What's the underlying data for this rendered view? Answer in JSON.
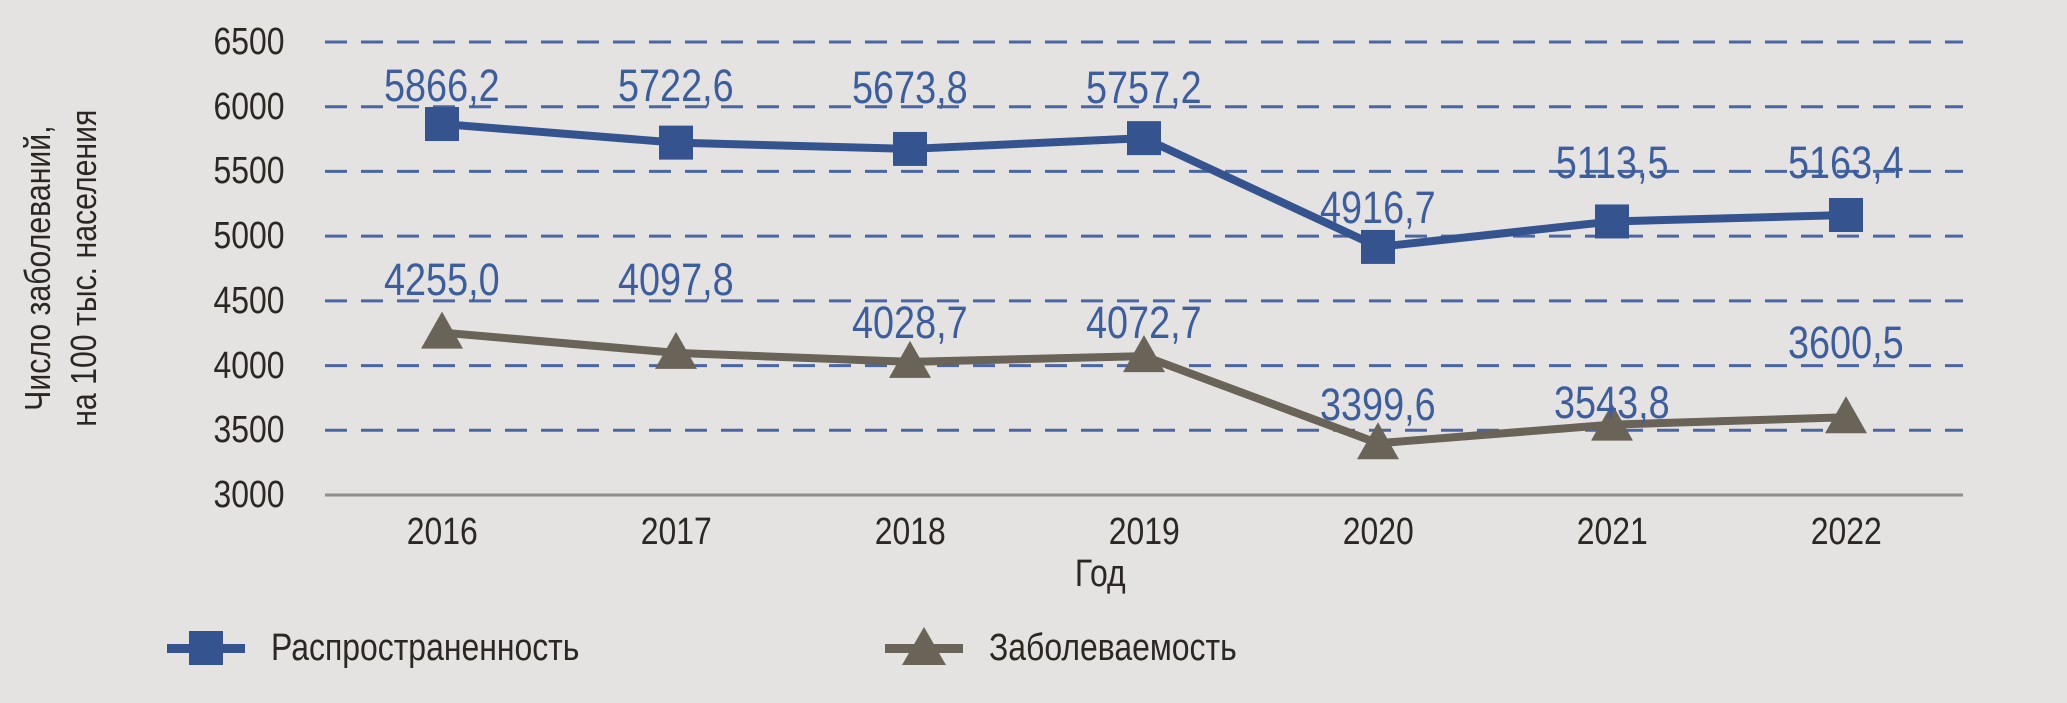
{
  "chart_data": {
    "type": "line",
    "title": "",
    "x": [
      "2016",
      "2017",
      "2018",
      "2019",
      "2020",
      "2021",
      "2022"
    ],
    "xlabel": "Год",
    "ylabel_line1": "Число заболеваний,",
    "ylabel_line2": "на 100 тыс. населения",
    "ylim": [
      3000,
      6500
    ],
    "yticks": [
      6500,
      6000,
      5500,
      5000,
      4500,
      4000,
      3500,
      3000
    ],
    "grid": "horizontal-dashed",
    "legend_position": "bottom",
    "series": [
      {
        "name": "Распространенность",
        "marker": "square",
        "color": "#35548f",
        "values": [
          5866.2,
          5722.6,
          5673.8,
          5757.2,
          4916.7,
          5113.5,
          5163.4
        ],
        "labels": [
          "5866,2",
          "5722,6",
          "5673,8",
          "5757,2",
          "4916,7",
          "5113,5",
          "5163,4"
        ]
      },
      {
        "name": "Заболеваемость",
        "marker": "triangle",
        "color": "#696358",
        "values": [
          4255.0,
          4097.8,
          4028.7,
          4072.7,
          3399.6,
          3543.8,
          3600.5
        ],
        "labels": [
          "4255,0",
          "4097,8",
          "4028,7",
          "4072,7",
          "3399,6",
          "3543,8",
          "3600,5"
        ]
      }
    ],
    "label_offsets": [
      [
        -61,
        -80,
        -84,
        -73,
        -62,
        -81,
        -75
      ],
      [
        -76,
        -96,
        -62,
        -56,
        -61,
        -45,
        -97
      ]
    ],
    "colors": {
      "background": "#e4e3e1",
      "grid": "#4a67a3",
      "axis": "#8d8d8d",
      "tick_text": "#2b2824",
      "value_label": "#3c5e9e",
      "series1": "#35548f",
      "series2": "#696358"
    }
  }
}
